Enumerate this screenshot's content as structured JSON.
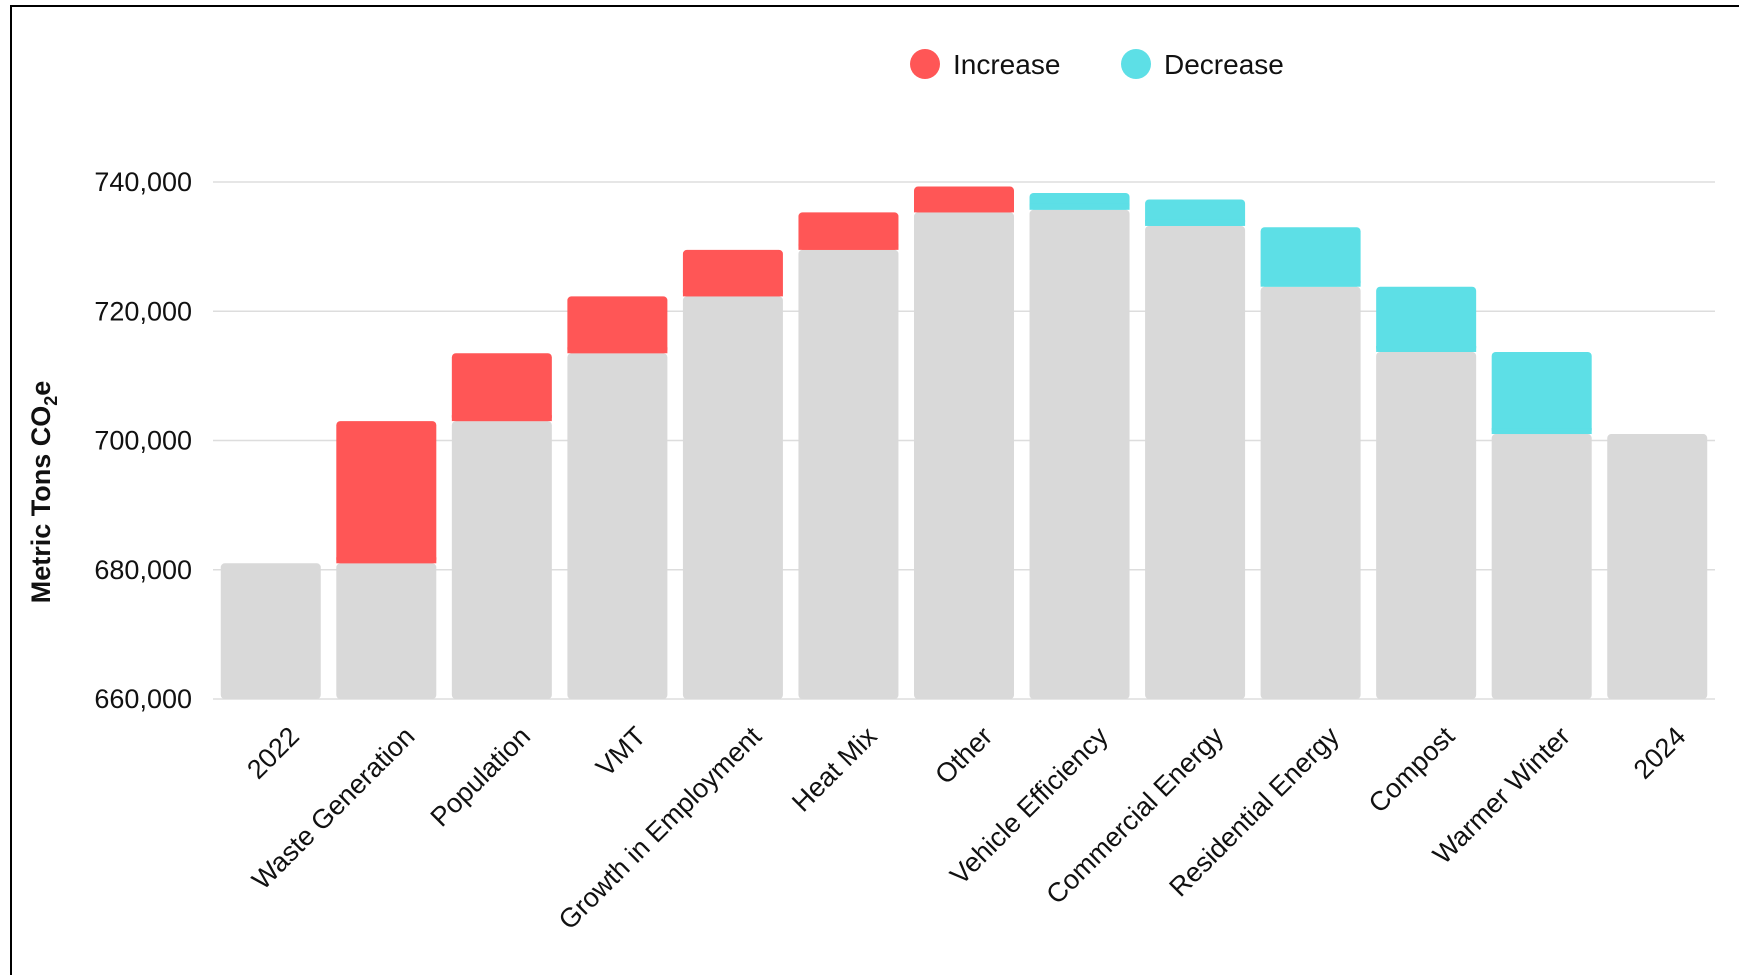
{
  "chart_data": {
    "type": "bar",
    "subtype": "waterfall",
    "categories": [
      "2022",
      "Waste Generation",
      "Population",
      "VMT",
      "Growth in Employment",
      "Heat Mix",
      "Other",
      "Vehicle Efficiency",
      "Commercial Energy",
      "Residential Energy",
      "Compost",
      "Warmer Winter",
      "2024"
    ],
    "base": [
      681000,
      681000,
      703000,
      713500,
      722300,
      729500,
      735300,
      735700,
      733200,
      723800,
      713700,
      701000,
      701000
    ],
    "change": [
      0,
      22000,
      10500,
      8800,
      7200,
      5800,
      4000,
      2600,
      4100,
      9200,
      10100,
      12700,
      0
    ],
    "direction": [
      "total",
      "increase",
      "increase",
      "increase",
      "increase",
      "increase",
      "increase",
      "decrease",
      "decrease",
      "decrease",
      "decrease",
      "decrease",
      "total"
    ],
    "totals": {
      "2022": 681000,
      "2024": 701000
    },
    "ylabel_main": "Metric Tons CO",
    "ylabel_sub": "2",
    "ylabel_end": "e",
    "ylim": [
      660000,
      740000
    ],
    "yticks": [
      660000,
      680000,
      700000,
      720000,
      740000
    ],
    "ytick_labels": [
      "660,000",
      "680,000",
      "700,000",
      "720,000",
      "740,000"
    ],
    "legend": [
      {
        "label": "Increase",
        "color": "#ff5656"
      },
      {
        "label": "Decrease",
        "color": "#5ddfe6"
      }
    ],
    "legend_position": "top-center",
    "grid": true,
    "colors": {
      "base": "#d9d9d9",
      "increase": "#ff5656",
      "decrease": "#5ddfe6",
      "grid": "#dddddd"
    }
  }
}
